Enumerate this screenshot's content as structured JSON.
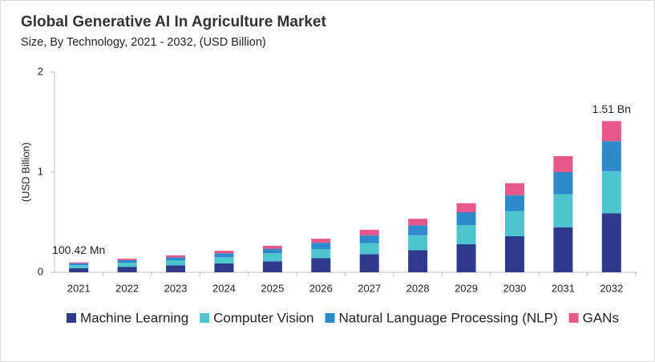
{
  "chart_data": {
    "type": "stacked_bar",
    "title": "Global Generative AI In Agriculture Market",
    "subtitle": "Size, By Technology, 2021 - 2032, (USD Billion)",
    "y_label": "(USD Billion)",
    "categories": [
      "2021",
      "2022",
      "2023",
      "2024",
      "2025",
      "2026",
      "2027",
      "2028",
      "2029",
      "2030",
      "2031",
      "2032"
    ],
    "series": [
      {
        "name": "Machine Learning",
        "color": "#2e3a8c",
        "values": [
          0.04,
          0.055,
          0.07,
          0.09,
          0.11,
          0.14,
          0.18,
          0.22,
          0.28,
          0.36,
          0.45,
          0.59
        ]
      },
      {
        "name": "Computer Vision",
        "color": "#4cc5cf",
        "values": [
          0.03,
          0.04,
          0.05,
          0.06,
          0.08,
          0.09,
          0.11,
          0.15,
          0.19,
          0.25,
          0.33,
          0.42
        ]
      },
      {
        "name": "Natural Language Processing (NLP)",
        "color": "#2e8acb",
        "values": [
          0.02,
          0.025,
          0.03,
          0.04,
          0.045,
          0.065,
          0.08,
          0.1,
          0.13,
          0.16,
          0.22,
          0.3
        ]
      },
      {
        "name": "GANs",
        "color": "#e8578a",
        "values": [
          0.01,
          0.015,
          0.02,
          0.025,
          0.03,
          0.04,
          0.055,
          0.065,
          0.09,
          0.12,
          0.16,
          0.2
        ]
      }
    ],
    "annotations": [
      {
        "category": "2021",
        "value": 0.10042,
        "label": "100.42 Mn"
      },
      {
        "category": "2032",
        "value": 1.51,
        "label": "1.51 Bn"
      }
    ],
    "ylim": [
      0,
      2
    ],
    "yticks": [
      0,
      1,
      2
    ],
    "grid": false,
    "legend": "bottom"
  }
}
